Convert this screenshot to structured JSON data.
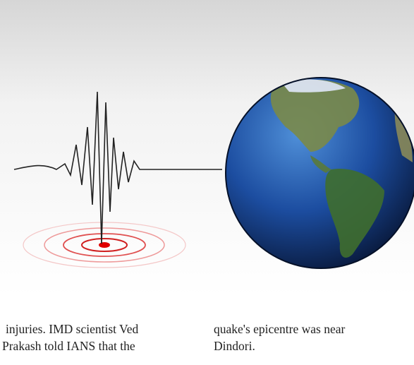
{
  "columns": [
    {
      "lines": [
        "injuries. IMD scientist Ved",
        "Prakash told IANS that the"
      ]
    },
    {
      "lines": [
        "quake's epicentre was near",
        "Dindori."
      ]
    }
  ]
}
